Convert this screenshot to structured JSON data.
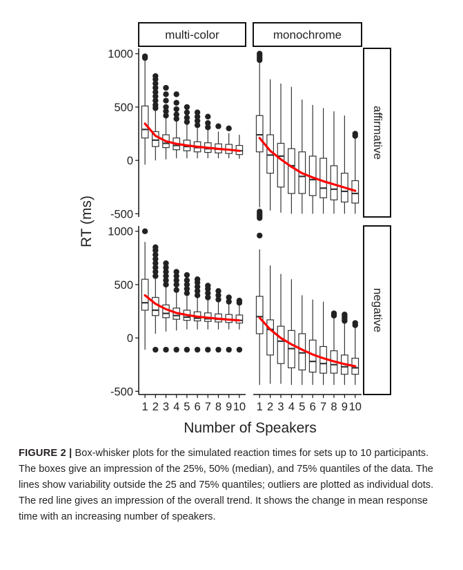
{
  "figure": {
    "label": "FIGURE 2 |",
    "caption": "Box-whisker plots for the simulated reaction times for sets up to 10 participants. The boxes give an impression of the 25%, 50% (median), and 75% quantiles of the data. The lines show variability outside the 25 and 75% quantiles; outliers are plotted as individual dots. The red line gives an impression of the overall trend. It shows the change in mean response time with an increasing number of speakers."
  },
  "colors": {
    "trend": "#ff0000",
    "box": "#333333",
    "outlier": "#222222"
  },
  "chart_data": {
    "type": "box",
    "xlabel": "Number of Speakers",
    "ylabel": "RT (ms)",
    "columns": [
      "multi-color",
      "monochrome"
    ],
    "rows": [
      "affirmative",
      "negative"
    ],
    "categories": [
      1,
      2,
      3,
      4,
      5,
      6,
      7,
      8,
      9,
      10
    ],
    "yticks": [
      -500,
      0,
      500,
      1000
    ],
    "ylim": [
      -530,
      1050
    ],
    "grid": false,
    "panels": [
      {
        "column": "multi-color",
        "row": "affirmative",
        "boxes": [
          {
            "x": 1,
            "low": -40,
            "q1": 210,
            "median": 290,
            "q3": 510,
            "high": 950,
            "outliers": [
              960,
              975
            ]
          },
          {
            "x": 2,
            "low": 0,
            "q1": 130,
            "median": 190,
            "q3": 270,
            "high": 470,
            "outliers": [
              490,
              520,
              560,
              600,
              640,
              680,
              720,
              760,
              790
            ]
          },
          {
            "x": 3,
            "low": 10,
            "q1": 120,
            "median": 160,
            "q3": 240,
            "high": 400,
            "outliers": [
              420,
              460,
              500,
              560,
              620,
              680
            ]
          },
          {
            "x": 4,
            "low": 20,
            "q1": 100,
            "median": 140,
            "q3": 210,
            "high": 370,
            "outliers": [
              390,
              430,
              480,
              540,
              620
            ]
          },
          {
            "x": 5,
            "low": 20,
            "q1": 90,
            "median": 130,
            "q3": 190,
            "high": 340,
            "outliers": [
              360,
              400,
              450,
              500
            ]
          },
          {
            "x": 6,
            "low": 20,
            "q1": 80,
            "median": 120,
            "q3": 175,
            "high": 310,
            "outliers": [
              330,
              370,
              410,
              450
            ]
          },
          {
            "x": 7,
            "low": 20,
            "q1": 75,
            "median": 110,
            "q3": 165,
            "high": 290,
            "outliers": [
              310,
              350,
              410
            ]
          },
          {
            "x": 8,
            "low": 20,
            "q1": 70,
            "median": 105,
            "q3": 155,
            "high": 270,
            "outliers": [
              320
            ]
          },
          {
            "x": 9,
            "low": 20,
            "q1": 65,
            "median": 100,
            "q3": 150,
            "high": 255,
            "outliers": [
              300
            ]
          },
          {
            "x": 10,
            "low": 15,
            "q1": 55,
            "median": 90,
            "q3": 140,
            "high": 240,
            "outliers": []
          }
        ],
        "trend": [
          [
            1,
            345
          ],
          [
            2,
            230
          ],
          [
            3,
            180
          ],
          [
            4,
            155
          ],
          [
            5,
            140
          ],
          [
            6,
            128
          ],
          [
            7,
            118
          ],
          [
            8,
            108
          ],
          [
            9,
            100
          ],
          [
            10,
            90
          ]
        ]
      },
      {
        "column": "monochrome",
        "row": "affirmative",
        "boxes": [
          {
            "x": 1,
            "low": -440,
            "q1": 80,
            "median": 240,
            "q3": 420,
            "high": 920,
            "outliers": [
              -540,
              -520,
              -500,
              -480,
              940,
              960,
              980,
              1000
            ]
          },
          {
            "x": 2,
            "low": -470,
            "q1": -120,
            "median": 50,
            "q3": 240,
            "high": 760,
            "outliers": []
          },
          {
            "x": 3,
            "low": -490,
            "q1": -250,
            "median": 40,
            "q3": 160,
            "high": 720,
            "outliers": []
          },
          {
            "x": 4,
            "low": -500,
            "q1": -310,
            "median": -50,
            "q3": 110,
            "high": 690,
            "outliers": []
          },
          {
            "x": 5,
            "low": -500,
            "q1": -310,
            "median": -150,
            "q3": 80,
            "high": 570,
            "outliers": []
          },
          {
            "x": 6,
            "low": -500,
            "q1": -330,
            "median": -180,
            "q3": 40,
            "high": 520,
            "outliers": []
          },
          {
            "x": 7,
            "low": -500,
            "q1": -350,
            "median": -260,
            "q3": 20,
            "high": 490,
            "outliers": []
          },
          {
            "x": 8,
            "low": -500,
            "q1": -370,
            "median": -270,
            "q3": -50,
            "high": 460,
            "outliers": []
          },
          {
            "x": 9,
            "low": -500,
            "q1": -390,
            "median": -290,
            "q3": -120,
            "high": 420,
            "outliers": []
          },
          {
            "x": 10,
            "low": -500,
            "q1": -400,
            "median": -310,
            "q3": -190,
            "high": 210,
            "outliers": [
              230,
              250
            ]
          }
        ],
        "trend": [
          [
            1,
            210
          ],
          [
            2,
            90
          ],
          [
            3,
            10
          ],
          [
            4,
            -60
          ],
          [
            5,
            -120
          ],
          [
            6,
            -160
          ],
          [
            7,
            -195
          ],
          [
            8,
            -225
          ],
          [
            9,
            -255
          ],
          [
            10,
            -285
          ]
        ]
      },
      {
        "column": "multi-color",
        "row": "negative",
        "boxes": [
          {
            "x": 1,
            "low": -110,
            "q1": 260,
            "median": 330,
            "q3": 550,
            "high": 900,
            "outliers": [
              1000
            ]
          },
          {
            "x": 2,
            "low": 40,
            "q1": 210,
            "median": 260,
            "q3": 380,
            "high": 560,
            "outliers": [
              -110,
              580,
              620,
              660,
              700,
              740,
              780,
              820,
              850
            ]
          },
          {
            "x": 3,
            "low": 60,
            "q1": 190,
            "median": 230,
            "q3": 310,
            "high": 480,
            "outliers": [
              -110,
              500,
              540,
              580,
              620,
              660,
              700
            ]
          },
          {
            "x": 4,
            "low": 70,
            "q1": 175,
            "median": 210,
            "q3": 280,
            "high": 430,
            "outliers": [
              -110,
              450,
              500,
              540,
              580,
              620
            ]
          },
          {
            "x": 5,
            "low": 80,
            "q1": 165,
            "median": 195,
            "q3": 260,
            "high": 400,
            "outliers": [
              -110,
              420,
              460,
              500,
              540,
              590
            ]
          },
          {
            "x": 6,
            "low": 80,
            "q1": 160,
            "median": 185,
            "q3": 245,
            "high": 380,
            "outliers": [
              -110,
              400,
              440,
              480,
              520,
              550
            ]
          },
          {
            "x": 7,
            "low": 80,
            "q1": 155,
            "median": 180,
            "q3": 235,
            "high": 360,
            "outliers": [
              -110,
              380,
              420,
              460,
              490
            ]
          },
          {
            "x": 8,
            "low": 80,
            "q1": 150,
            "median": 175,
            "q3": 225,
            "high": 340,
            "outliers": [
              -110,
              360,
              400,
              440
            ]
          },
          {
            "x": 9,
            "low": 80,
            "q1": 145,
            "median": 170,
            "q3": 220,
            "high": 320,
            "outliers": [
              -110,
              340,
              380
            ]
          },
          {
            "x": 10,
            "low": 80,
            "q1": 140,
            "median": 165,
            "q3": 215,
            "high": 310,
            "outliers": [
              -110,
              330,
              350
            ]
          }
        ],
        "trend": [
          [
            1,
            400
          ],
          [
            2,
            320
          ],
          [
            3,
            270
          ],
          [
            4,
            235
          ],
          [
            5,
            215
          ],
          [
            6,
            200
          ],
          [
            7,
            190
          ],
          [
            8,
            180
          ],
          [
            9,
            172
          ],
          [
            10,
            165
          ]
        ]
      },
      {
        "column": "monochrome",
        "row": "negative",
        "boxes": [
          {
            "x": 1,
            "low": -440,
            "q1": 40,
            "median": 200,
            "q3": 390,
            "high": 830,
            "outliers": [
              960
            ]
          },
          {
            "x": 2,
            "low": -430,
            "q1": -160,
            "median": 80,
            "q3": 170,
            "high": 680,
            "outliers": []
          },
          {
            "x": 3,
            "low": -430,
            "q1": -240,
            "median": -30,
            "q3": 110,
            "high": 600,
            "outliers": []
          },
          {
            "x": 4,
            "low": -440,
            "q1": -280,
            "median": -100,
            "q3": 70,
            "high": 550,
            "outliers": []
          },
          {
            "x": 5,
            "low": -440,
            "q1": -300,
            "median": -140,
            "q3": 40,
            "high": 400,
            "outliers": []
          },
          {
            "x": 6,
            "low": -440,
            "q1": -320,
            "median": -220,
            "q3": -20,
            "high": 360,
            "outliers": []
          },
          {
            "x": 7,
            "low": -440,
            "q1": -330,
            "median": -240,
            "q3": -80,
            "high": 340,
            "outliers": []
          },
          {
            "x": 8,
            "low": -440,
            "q1": -330,
            "median": -250,
            "q3": -120,
            "high": 190,
            "outliers": [
              210,
              230
            ]
          },
          {
            "x": 9,
            "low": -440,
            "q1": -340,
            "median": -270,
            "q3": -160,
            "high": 140,
            "outliers": [
              160,
              180,
              200,
              220
            ]
          },
          {
            "x": 10,
            "low": -440,
            "q1": -340,
            "median": -280,
            "q3": -190,
            "high": 100,
            "outliers": [
              120,
              140
            ]
          }
        ],
        "trend": [
          [
            1,
            190
          ],
          [
            2,
            80
          ],
          [
            3,
            0
          ],
          [
            4,
            -60
          ],
          [
            5,
            -110
          ],
          [
            6,
            -155
          ],
          [
            7,
            -190
          ],
          [
            8,
            -220
          ],
          [
            9,
            -245
          ],
          [
            10,
            -265
          ]
        ]
      }
    ]
  }
}
